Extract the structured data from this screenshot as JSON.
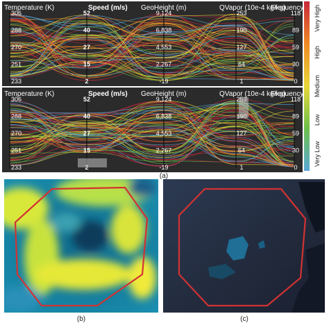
{
  "figure": {
    "captions": {
      "a": "(a)",
      "b": "(b)",
      "c": "(c)"
    }
  },
  "parallel_coordinates": {
    "axes": [
      {
        "title": "Temperature (K)",
        "ticks": [
          "306",
          "288",
          "270",
          "251",
          "233"
        ]
      },
      {
        "title": "Speed (m/s)",
        "ticks": [
          "52",
          "40",
          "27",
          "15",
          "2"
        ]
      },
      {
        "title": "GeoHeight (m)",
        "ticks": [
          "9,124",
          "6,838",
          "4,553",
          "2,267",
          "-19"
        ]
      },
      {
        "title": "QVapor (10e-4 kg/kg)",
        "ticks": [
          "253",
          "190",
          "127",
          "64",
          "1"
        ]
      },
      {
        "title": "Frequency",
        "ticks": [
          "118",
          "89",
          "59",
          "30",
          "0"
        ]
      }
    ]
  },
  "legend": {
    "labels": [
      "Very High",
      "High",
      "Medium",
      "Low",
      "Very Low"
    ],
    "colors": [
      "#c8283c",
      "#f08a24",
      "#e8d83a",
      "#6cc04a",
      "#5aa8d8"
    ]
  },
  "chart_data": [
    {
      "type": "parallel_coordinates",
      "panel": "a-top",
      "dimensions": [
        "Temperature (K)",
        "Speed (m/s)",
        "GeoHeight (m)",
        "QVapor (10e-4 kg/kg)",
        "Frequency"
      ],
      "ranges": [
        [
          233,
          306
        ],
        [
          2,
          52
        ],
        [
          -19,
          9124
        ],
        [
          1,
          253
        ],
        [
          0,
          118
        ]
      ],
      "color_scale": [
        "Very Low",
        "Low",
        "Medium",
        "High",
        "Very High"
      ]
    },
    {
      "type": "parallel_coordinates",
      "panel": "a-bottom",
      "dimensions": [
        "Temperature (K)",
        "Speed (m/s)",
        "GeoHeight (m)",
        "QVapor (10e-4 kg/kg)",
        "Frequency"
      ],
      "ranges": [
        [
          233,
          306
        ],
        [
          2,
          52
        ],
        [
          -19,
          9124
        ],
        [
          1,
          253
        ],
        [
          0,
          118
        ]
      ],
      "color_scale": [
        "Very Low",
        "Low",
        "Medium",
        "High",
        "Very High"
      ]
    }
  ]
}
